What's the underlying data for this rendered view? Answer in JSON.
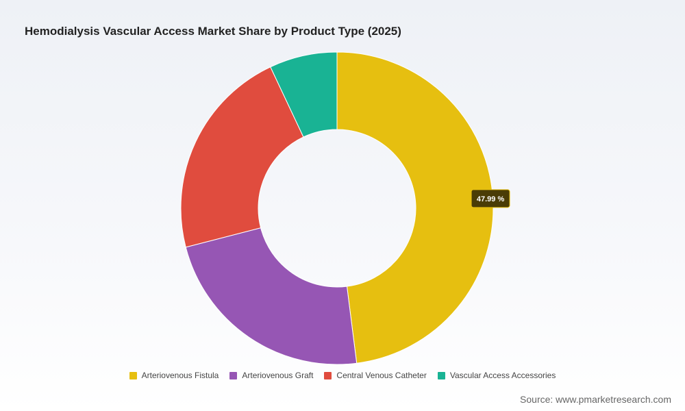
{
  "chart_data": {
    "type": "pie",
    "title": "Hemodialysis Vascular Access Market Share by Product Type (2025)",
    "unit": "%",
    "categories": [
      "Arteriovenous Fistula",
      "Arteriovenous Graft",
      "Central Venous Catheter",
      "Vascular Access Accessories"
    ],
    "values": [
      47.99,
      23.0,
      22.0,
      7.01
    ],
    "colors": [
      "#e6bf10",
      "#9656b4",
      "#e04c3e",
      "#19b394"
    ],
    "visible_labels": [
      "47.99 %",
      null,
      null,
      null
    ],
    "legend_position": "bottom"
  },
  "source": "Source: www.pmarketresearch.com"
}
